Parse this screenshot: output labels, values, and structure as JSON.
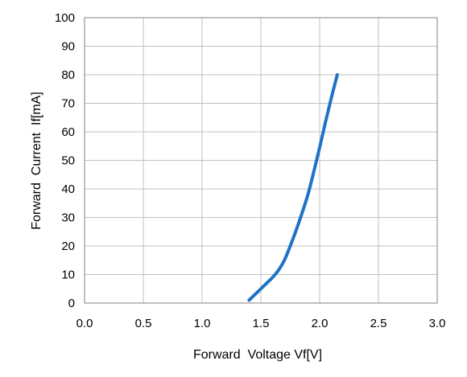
{
  "chart_data": {
    "type": "line",
    "title": "",
    "xlabel": "Forward  Voltage Vf[V]",
    "ylabel": "Forward  Current  If[mA]",
    "xlim": [
      0.0,
      3.0
    ],
    "ylim": [
      0,
      100
    ],
    "x_ticks": [
      "0.0",
      "0.5",
      "1.0",
      "1.5",
      "2.0",
      "2.5",
      "3.0"
    ],
    "y_ticks": [
      "0",
      "10",
      "20",
      "30",
      "40",
      "50",
      "60",
      "70",
      "80",
      "90",
      "100"
    ],
    "grid": true,
    "legend": "none",
    "series": [
      {
        "color": "#1f73c5",
        "x": [
          1.4,
          1.45,
          1.5,
          1.55,
          1.6,
          1.65,
          1.7,
          1.75,
          1.8,
          1.85,
          1.9,
          1.95,
          2.0,
          2.05,
          2.1,
          2.15
        ],
        "y": [
          1,
          3,
          5,
          7,
          9,
          11.5,
          15,
          20,
          25.5,
          31.5,
          38,
          46,
          54.5,
          63.5,
          72,
          80
        ]
      }
    ]
  },
  "colors": {
    "grid": "#c0c0c0",
    "frame": "#808080",
    "line": "#1f73c5"
  }
}
